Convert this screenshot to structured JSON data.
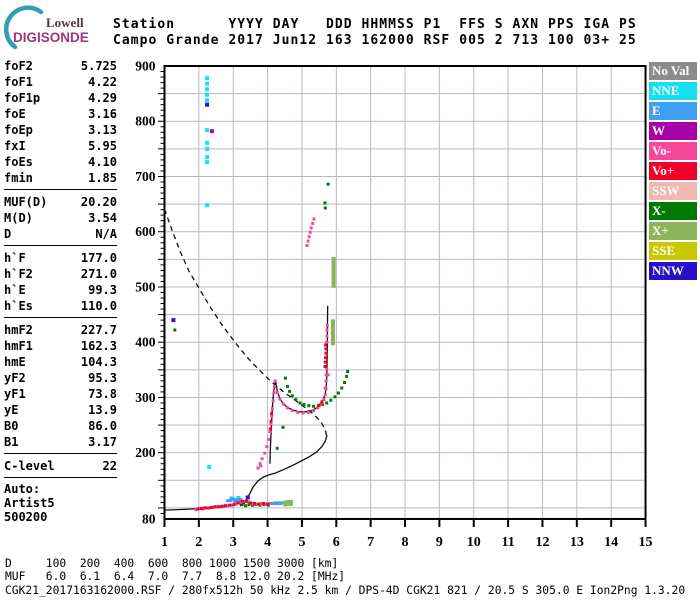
{
  "logo": {
    "line1": "Lowell",
    "line2": "DIGISONDE"
  },
  "header": {
    "line1": "Station      YYYY DAY   DDD HHMMSS P1  FFS S AXN PPS IGA PS",
    "line2": "Campo Grande 2017 Jun12 163 162000 RSF 005 2 713 100 03+ 25"
  },
  "params": {
    "rows": [
      {
        "l": "foF2",
        "v": "5.725"
      },
      {
        "l": "foF1",
        "v": "4.22"
      },
      {
        "l": "foF1p",
        "v": "4.29"
      },
      {
        "l": "foE",
        "v": "3.16"
      },
      {
        "l": "foEp",
        "v": "3.13"
      },
      {
        "l": "fxI",
        "v": "5.95"
      },
      {
        "l": "foEs",
        "v": "4.10"
      },
      {
        "l": "fmin",
        "v": "1.85"
      },
      {
        "hr": true
      },
      {
        "l": "MUF(D)",
        "v": "20.20"
      },
      {
        "l": "M(D)",
        "v": "3.54"
      },
      {
        "l": "D",
        "v": "N/A"
      },
      {
        "hr": true
      },
      {
        "l": "h`F",
        "v": "177.0"
      },
      {
        "l": "h`F2",
        "v": "271.0"
      },
      {
        "l": "h`E",
        "v": "99.3"
      },
      {
        "l": "h`Es",
        "v": "110.0"
      },
      {
        "hr": true
      },
      {
        "l": "hmF2",
        "v": "227.7"
      },
      {
        "l": "hmF1",
        "v": "162.3"
      },
      {
        "l": "hmE",
        "v": "104.3"
      },
      {
        "l": "yF2",
        "v": "95.3"
      },
      {
        "l": "yF1",
        "v": "73.8"
      },
      {
        "l": "yE",
        "v": "13.9"
      },
      {
        "l": "B0",
        "v": "86.0"
      },
      {
        "l": "B1",
        "v": "3.17"
      },
      {
        "hr": true
      },
      {
        "l": "C-level",
        "v": "22"
      },
      {
        "hr": true
      },
      {
        "l": "Auto:",
        "v": ""
      },
      {
        "l": "Artist5",
        "v": ""
      },
      {
        "l": "500200",
        "v": ""
      }
    ]
  },
  "legend": {
    "items": [
      {
        "label": "No Val",
        "color": "#8C8C8C"
      },
      {
        "label": "NNE",
        "color": "#18DFF0"
      },
      {
        "label": "E",
        "color": "#3F9FF0"
      },
      {
        "label": "W",
        "color": "#A800A8"
      },
      {
        "label": "Vo-",
        "color": "#F8489C"
      },
      {
        "label": "Vo+",
        "color": "#F00028"
      },
      {
        "label": "SSW",
        "color": "#F0B8B0"
      },
      {
        "label": "X-",
        "color": "#007A00"
      },
      {
        "label": "X+",
        "color": "#8CB45A"
      },
      {
        "label": "SSE",
        "color": "#C8C800"
      },
      {
        "label": "NNW",
        "color": "#2810C8"
      }
    ]
  },
  "footer": {
    "d_row": "D     100  200  400  600  800 1000 1500 3000 [km]",
    "muf_row": "MUF   6.0  6.1  6.4  7.0  7.7  8.8 12.0 20.2 [MHz]",
    "info": "CGK21_2017163162000.RSF / 280fx512h 50 kHz 2.5 km / DPS-4D CGK21 821 / 20.5 S 305.0 E Ion2Png 1.3.20"
  },
  "chart_data": {
    "type": "scatter",
    "title": "Digisonde ionogram, Campo Grande, 2017 day 163 16:20:00",
    "x_unit": "MHz",
    "y_unit": "km",
    "grid_color": "#B6BAC8",
    "x": {
      "min": 1,
      "max": 15,
      "ticks": [
        1,
        2,
        3,
        4,
        5,
        6,
        7,
        8,
        9,
        10,
        11,
        12,
        13,
        14,
        15
      ],
      "gridlines": [
        2,
        3,
        4,
        5,
        6,
        7,
        8,
        9,
        10,
        11,
        12,
        13,
        14
      ]
    },
    "y": {
      "min": 80,
      "max": 900,
      "labels": [
        900,
        800,
        700,
        600,
        500,
        400,
        300,
        200,
        80
      ],
      "gridlines": [
        100,
        150,
        200,
        250,
        300,
        350,
        400,
        450,
        500,
        550,
        600,
        650,
        700,
        750,
        800,
        850
      ]
    },
    "curves": [
      {
        "name": "topside-model-dashed",
        "dashed": true,
        "points": [
          [
            1.0,
            641
          ],
          [
            1.2,
            606
          ],
          [
            1.45,
            565
          ],
          [
            1.7,
            530
          ],
          [
            2.0,
            498
          ],
          [
            2.35,
            462
          ],
          [
            2.7,
            429
          ],
          [
            3.05,
            400
          ],
          [
            3.4,
            373
          ],
          [
            3.75,
            350
          ],
          [
            4.1,
            329
          ],
          [
            4.45,
            311
          ],
          [
            4.8,
            295
          ],
          [
            5.1,
            281
          ],
          [
            5.35,
            269
          ],
          [
            5.55,
            256
          ],
          [
            5.67,
            243
          ],
          [
            5.73,
            228
          ]
        ]
      },
      {
        "name": "bottomside-profile",
        "dashed": false,
        "points": [
          [
            1.0,
            96
          ],
          [
            1.4,
            97
          ],
          [
            1.8,
            98
          ],
          [
            2.2,
            100
          ],
          [
            2.6,
            102
          ],
          [
            2.9,
            104
          ],
          [
            3.05,
            107
          ],
          [
            3.16,
            111
          ],
          [
            3.22,
            104
          ],
          [
            3.32,
            108
          ],
          [
            3.45,
            122
          ],
          [
            3.58,
            138
          ],
          [
            3.72,
            149
          ],
          [
            3.88,
            156
          ],
          [
            4.05,
            160
          ],
          [
            4.22,
            163
          ],
          [
            4.45,
            169
          ],
          [
            4.7,
            176
          ],
          [
            4.95,
            184
          ],
          [
            5.2,
            192
          ],
          [
            5.42,
            201
          ],
          [
            5.58,
            211
          ],
          [
            5.68,
            221
          ],
          [
            5.73,
            232
          ]
        ]
      },
      {
        "name": "o-trace-fit",
        "dashed": false,
        "points": [
          [
            4.07,
            180
          ],
          [
            4.08,
            205
          ],
          [
            4.1,
            232
          ],
          [
            4.12,
            258
          ],
          [
            4.14,
            283
          ],
          [
            4.17,
            305
          ],
          [
            4.2,
            322
          ],
          [
            4.23,
            331
          ],
          [
            4.28,
            312
          ],
          [
            4.35,
            299
          ],
          [
            4.45,
            289
          ],
          [
            4.58,
            282
          ],
          [
            4.74,
            277
          ],
          [
            4.92,
            274
          ],
          [
            5.1,
            274
          ],
          [
            5.28,
            276
          ],
          [
            5.42,
            281
          ],
          [
            5.54,
            288
          ],
          [
            5.63,
            297
          ],
          [
            5.69,
            310
          ],
          [
            5.72,
            330
          ],
          [
            5.73,
            360
          ],
          [
            5.74,
            395
          ],
          [
            5.74,
            430
          ],
          [
            5.75,
            466
          ]
        ]
      }
    ],
    "point_groups": [
      {
        "name": "NNE",
        "color": "#18DFF0",
        "size": [
          4,
          4
        ],
        "points": [
          [
            2.24,
            878
          ],
          [
            2.24,
            868
          ],
          [
            2.24,
            858
          ],
          [
            2.24,
            848
          ],
          [
            2.24,
            838
          ],
          [
            2.24,
            784
          ],
          [
            2.24,
            761
          ],
          [
            2.24,
            750
          ],
          [
            2.24,
            735
          ],
          [
            2.24,
            726
          ],
          [
            2.24,
            648
          ],
          [
            2.3,
            174
          ],
          [
            2.95,
            117
          ],
          [
            3.05,
            114
          ],
          [
            3.15,
            118
          ]
        ]
      },
      {
        "name": "NNW",
        "color": "#2810C8",
        "size": [
          4,
          4
        ],
        "points": [
          [
            2.24,
            830
          ],
          [
            1.26,
            440
          ],
          [
            3.42,
            119
          ]
        ]
      },
      {
        "name": "W",
        "color": "#A800A8",
        "size": [
          4,
          4
        ],
        "points": [
          [
            2.38,
            782
          ]
        ]
      },
      {
        "name": "E",
        "color": "#3F9FF0",
        "size": [
          6,
          3
        ],
        "points": [
          [
            2.88,
            113
          ],
          [
            2.98,
            116
          ],
          [
            3.08,
            112
          ],
          [
            3.18,
            115
          ],
          [
            4.18,
            108
          ],
          [
            4.26,
            109
          ],
          [
            4.34,
            108
          ],
          [
            4.42,
            109
          ]
        ]
      },
      {
        "name": "X-",
        "color": "#007A00",
        "size": [
          3,
          3
        ],
        "points": [
          [
            3.26,
            106
          ],
          [
            3.36,
            104
          ],
          [
            3.46,
            106
          ],
          [
            3.56,
            105
          ],
          [
            3.66,
            106
          ],
          [
            3.78,
            105
          ],
          [
            3.9,
            106
          ],
          [
            4.02,
            105
          ],
          [
            4.52,
            335
          ],
          [
            4.58,
            320
          ],
          [
            4.64,
            311
          ],
          [
            4.72,
            303
          ],
          [
            4.82,
            296
          ],
          [
            4.94,
            290
          ],
          [
            5.06,
            287
          ],
          [
            5.2,
            285
          ],
          [
            5.34,
            284
          ],
          [
            5.48,
            285
          ],
          [
            5.6,
            287
          ],
          [
            5.72,
            290
          ],
          [
            5.84,
            295
          ],
          [
            5.96,
            301
          ],
          [
            6.06,
            308
          ],
          [
            6.16,
            317
          ],
          [
            6.24,
            327
          ],
          [
            6.3,
            338
          ],
          [
            6.33,
            347
          ],
          [
            5.76,
            686
          ],
          [
            5.67,
            652
          ],
          [
            5.68,
            643
          ],
          [
            1.3,
            422
          ],
          [
            4.45,
            246
          ],
          [
            4.28,
            208
          ]
        ]
      },
      {
        "name": "X+",
        "color": "#8CB45A",
        "size": [
          4,
          6
        ],
        "points": [
          [
            5.92,
            549
          ],
          [
            5.92,
            540
          ],
          [
            5.92,
            531
          ],
          [
            5.92,
            522
          ],
          [
            5.92,
            513
          ],
          [
            5.92,
            504
          ],
          [
            5.9,
            436
          ],
          [
            5.9,
            427
          ],
          [
            5.9,
            418
          ],
          [
            5.9,
            409
          ],
          [
            5.9,
            400
          ],
          [
            4.52,
            108
          ],
          [
            4.6,
            109
          ],
          [
            4.68,
            109
          ]
        ]
      },
      {
        "name": "Vo-",
        "color": "#F8489C",
        "size": [
          3,
          3
        ],
        "points": [
          [
            1.92,
            97
          ],
          [
            2.02,
            99
          ],
          [
            2.12,
            98
          ],
          [
            2.22,
            100
          ],
          [
            2.32,
            100
          ],
          [
            2.42,
            101
          ],
          [
            2.52,
            102
          ],
          [
            2.62,
            102
          ],
          [
            2.72,
            103
          ],
          [
            2.84,
            104
          ],
          [
            2.96,
            105
          ],
          [
            3.08,
            107
          ],
          [
            3.2,
            110
          ],
          [
            3.32,
            112
          ],
          [
            3.44,
            111
          ],
          [
            3.56,
            108
          ],
          [
            3.68,
            107
          ],
          [
            3.82,
            108
          ],
          [
            3.94,
            107
          ],
          [
            4.06,
            108
          ],
          [
            3.72,
            172
          ],
          [
            3.78,
            180
          ],
          [
            3.84,
            189
          ],
          [
            3.92,
            199
          ],
          [
            3.98,
            211
          ],
          [
            4.03,
            224
          ],
          [
            4.07,
            238
          ],
          [
            4.1,
            252
          ],
          [
            4.12,
            266
          ],
          [
            4.14,
            280
          ],
          [
            4.16,
            294
          ],
          [
            4.18,
            308
          ],
          [
            4.2,
            320
          ],
          [
            4.22,
            330
          ],
          [
            4.28,
            309
          ],
          [
            4.36,
            297
          ],
          [
            4.46,
            288
          ],
          [
            4.58,
            281
          ],
          [
            4.72,
            276
          ],
          [
            4.88,
            273
          ],
          [
            5.04,
            272
          ],
          [
            5.2,
            273
          ],
          [
            5.34,
            276
          ],
          [
            5.46,
            281
          ],
          [
            5.56,
            288
          ],
          [
            5.64,
            296
          ],
          [
            5.68,
            305
          ],
          [
            5.7,
            316
          ],
          [
            5.7,
            330
          ],
          [
            5.71,
            341
          ],
          [
            5.72,
            352
          ],
          [
            5.72,
            400
          ],
          [
            5.73,
            411
          ],
          [
            5.73,
            422
          ],
          [
            5.74,
            430
          ],
          [
            5.67,
            317
          ],
          [
            5.76,
            341
          ],
          [
            3.8,
            176
          ],
          [
            5.15,
            575
          ],
          [
            5.18,
            583
          ],
          [
            5.21,
            591
          ],
          [
            5.24,
            599
          ],
          [
            5.27,
            607
          ],
          [
            5.31,
            615
          ],
          [
            5.35,
            623
          ]
        ]
      },
      {
        "name": "Vo+",
        "color": "#F00028",
        "size": [
          3,
          3
        ],
        "points": [
          [
            1.97,
            98
          ],
          [
            2.07,
            99
          ],
          [
            2.17,
            100
          ],
          [
            2.27,
            100
          ],
          [
            2.37,
            101
          ],
          [
            2.47,
            102
          ],
          [
            2.57,
            102
          ],
          [
            2.67,
            103
          ],
          [
            2.77,
            104
          ],
          [
            2.9,
            105
          ],
          [
            3.02,
            106
          ],
          [
            3.14,
            109
          ],
          [
            3.26,
            112
          ],
          [
            3.38,
            112
          ],
          [
            3.5,
            109
          ],
          [
            3.62,
            108
          ],
          [
            3.74,
            107
          ],
          [
            3.88,
            108
          ],
          [
            4.0,
            107
          ],
          [
            4.08,
            243
          ],
          [
            4.1,
            257
          ],
          [
            4.12,
            271
          ],
          [
            5.67,
            356
          ],
          [
            5.68,
            364
          ],
          [
            5.69,
            372
          ],
          [
            5.7,
            380
          ],
          [
            5.7,
            388
          ],
          [
            5.69,
            395
          ],
          [
            5.5,
            286
          ],
          [
            5.58,
            292
          ]
        ]
      }
    ]
  }
}
